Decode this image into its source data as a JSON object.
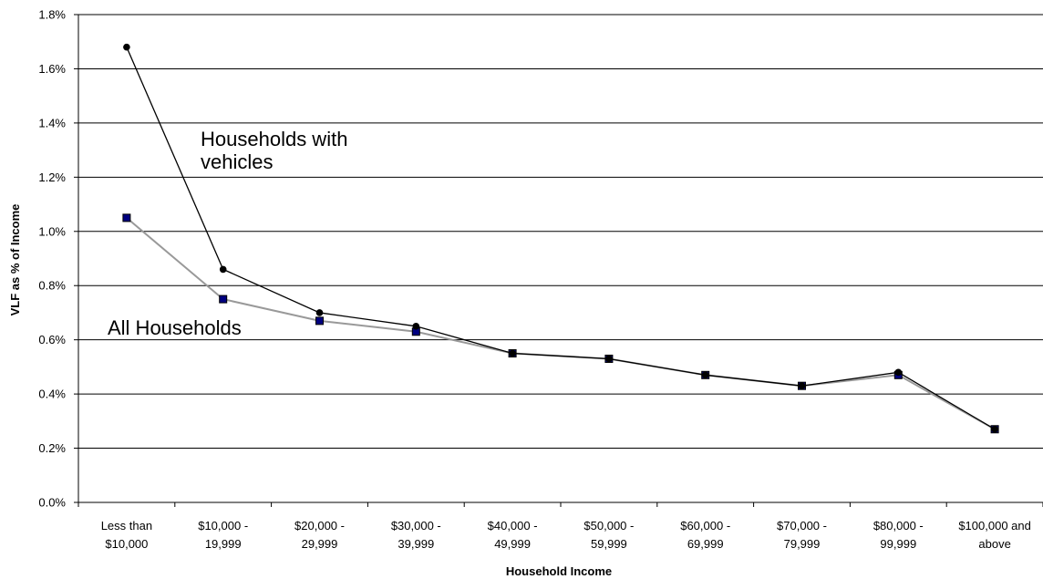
{
  "chart_data": {
    "type": "line",
    "title": "",
    "xlabel": "Household Income",
    "ylabel": "VLF as % of Income",
    "categories": [
      [
        "Less than",
        "$10,000"
      ],
      [
        "$10,000 -",
        "19,999"
      ],
      [
        "$20,000 -",
        "29,999"
      ],
      [
        "$30,000 -",
        "39,999"
      ],
      [
        "$40,000 -",
        "49,999"
      ],
      [
        "$50,000 -",
        "59,999"
      ],
      [
        "$60,000 -",
        "69,999"
      ],
      [
        "$70,000 -",
        "79,999"
      ],
      [
        "$80,000 -",
        "99,999"
      ],
      [
        "$100,000 and",
        "above"
      ]
    ],
    "ylim": [
      0,
      1.8
    ],
    "y_ticks": [
      "0.0%",
      "0.2%",
      "0.4%",
      "0.6%",
      "0.8%",
      "1.0%",
      "1.2%",
      "1.4%",
      "1.6%",
      "1.8%"
    ],
    "grid": true,
    "series": [
      {
        "name": "All Households",
        "values": [
          1.05,
          0.75,
          0.67,
          0.63,
          0.55,
          0.53,
          0.47,
          0.43,
          0.47,
          0.27
        ],
        "line_color": "#999999",
        "marker": "square",
        "marker_color": "#000080"
      },
      {
        "name": "Households with vehicles",
        "values": [
          1.68,
          0.86,
          0.7,
          0.65,
          0.55,
          0.53,
          0.47,
          0.43,
          0.48,
          0.27
        ],
        "line_color": "#000000",
        "marker": "circle",
        "marker_color": "#000000"
      }
    ],
    "annotations": [
      {
        "lines": [
          "Households with",
          "vehicles"
        ]
      },
      {
        "lines": [
          "All Households"
        ]
      }
    ]
  }
}
